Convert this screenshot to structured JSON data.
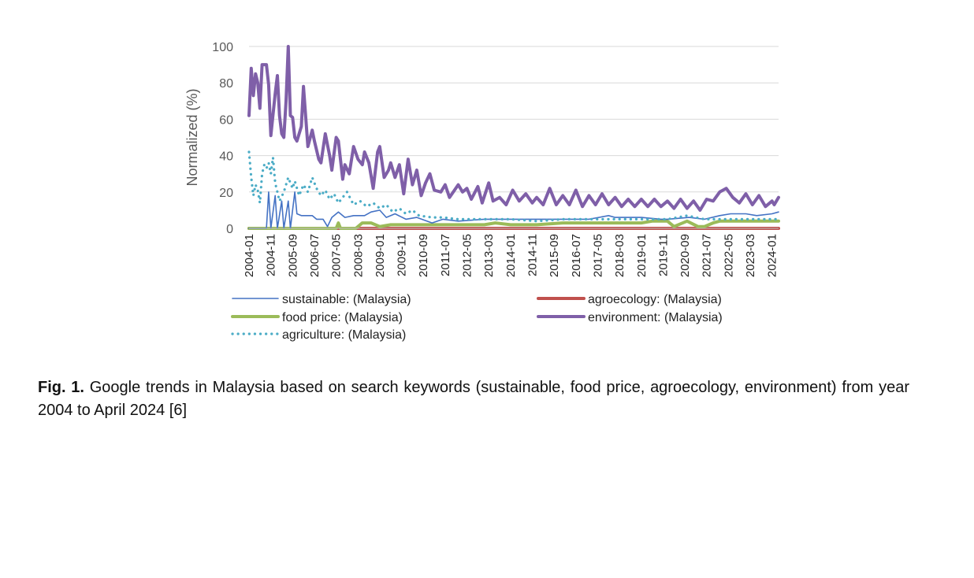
{
  "chart_data": {
    "type": "line",
    "title": "",
    "ylabel": "Normalized (%)",
    "xlabel": "",
    "ylim": [
      0,
      100
    ],
    "yticks": [
      0,
      20,
      40,
      60,
      80,
      100
    ],
    "xlim": [
      "2004-01",
      "2024-04"
    ],
    "xtick_labels": [
      "2004-01",
      "2004-11",
      "2005-09",
      "2006-07",
      "2007-05",
      "2008-03",
      "2009-01",
      "2009-11",
      "2010-09",
      "2011-07",
      "2012-05",
      "2013-03",
      "2014-01",
      "2014-11",
      "2015-09",
      "2016-07",
      "2017-05",
      "2018-03",
      "2019-01",
      "2019-11",
      "2020-09",
      "2021-07",
      "2022-05",
      "2023-03",
      "2024-01"
    ],
    "grid": "horizontal",
    "legend_position": "bottom",
    "series": [
      {
        "name": "sustainable: (Malaysia)",
        "color": "#4472c4",
        "style": "thin-solid",
        "points": [
          [
            "2004-01",
            0
          ],
          [
            "2004-09",
            0
          ],
          [
            "2004-10",
            20
          ],
          [
            "2004-11",
            0
          ],
          [
            "2005-01",
            18
          ],
          [
            "2005-02",
            0
          ],
          [
            "2005-04",
            15
          ],
          [
            "2005-05",
            0
          ],
          [
            "2005-07",
            15
          ],
          [
            "2005-08",
            0
          ],
          [
            "2005-10",
            20
          ],
          [
            "2005-11",
            8
          ],
          [
            "2006-01",
            7
          ],
          [
            "2006-06",
            7
          ],
          [
            "2006-08",
            5
          ],
          [
            "2006-11",
            5
          ],
          [
            "2007-01",
            1
          ],
          [
            "2007-03",
            6
          ],
          [
            "2007-06",
            9
          ],
          [
            "2007-09",
            6
          ],
          [
            "2008-01",
            7
          ],
          [
            "2008-06",
            7
          ],
          [
            "2008-09",
            9
          ],
          [
            "2009-01",
            10
          ],
          [
            "2009-04",
            6
          ],
          [
            "2009-08",
            8
          ],
          [
            "2010-01",
            5
          ],
          [
            "2010-06",
            6
          ],
          [
            "2011-01",
            3
          ],
          [
            "2011-06",
            5
          ],
          [
            "2012-01",
            4
          ],
          [
            "2013-01",
            5
          ],
          [
            "2014-01",
            5
          ],
          [
            "2015-01",
            5
          ],
          [
            "2016-01",
            5
          ],
          [
            "2017-01",
            5
          ],
          [
            "2017-10",
            7
          ],
          [
            "2018-01",
            6
          ],
          [
            "2019-01",
            6
          ],
          [
            "2019-10",
            5
          ],
          [
            "2020-01",
            5
          ],
          [
            "2020-11",
            6
          ],
          [
            "2021-06",
            5
          ],
          [
            "2022-01",
            7
          ],
          [
            "2022-06",
            8
          ],
          [
            "2023-01",
            8
          ],
          [
            "2023-06",
            7
          ],
          [
            "2024-01",
            8
          ],
          [
            "2024-04",
            9
          ]
        ]
      },
      {
        "name": "agroecology: (Malaysia)",
        "color": "#c0504d",
        "style": "thick-solid",
        "points": [
          [
            "2004-01",
            0
          ],
          [
            "2024-04",
            0
          ]
        ]
      },
      {
        "name": "food price: (Malaysia)",
        "color": "#9bbb59",
        "style": "thick-solid",
        "points": [
          [
            "2004-01",
            0
          ],
          [
            "2007-05",
            0
          ],
          [
            "2007-06",
            3
          ],
          [
            "2007-07",
            0
          ],
          [
            "2008-02",
            0
          ],
          [
            "2008-05",
            3
          ],
          [
            "2008-09",
            3
          ],
          [
            "2009-01",
            1
          ],
          [
            "2009-06",
            2
          ],
          [
            "2010-01",
            2
          ],
          [
            "2011-01",
            2
          ],
          [
            "2012-01",
            2
          ],
          [
            "2013-01",
            2
          ],
          [
            "2013-06",
            3
          ],
          [
            "2014-01",
            2
          ],
          [
            "2015-01",
            2
          ],
          [
            "2016-01",
            3
          ],
          [
            "2017-01",
            3
          ],
          [
            "2018-01",
            3
          ],
          [
            "2019-01",
            3
          ],
          [
            "2019-06",
            4
          ],
          [
            "2020-01",
            4
          ],
          [
            "2020-04",
            1
          ],
          [
            "2020-10",
            4
          ],
          [
            "2021-03",
            1
          ],
          [
            "2021-06",
            1
          ],
          [
            "2021-10",
            3
          ],
          [
            "2022-01",
            4
          ],
          [
            "2023-01",
            4
          ],
          [
            "2024-04",
            4
          ]
        ]
      },
      {
        "name": "environment: (Malaysia)",
        "color": "#7f5fa8",
        "style": "thick-solid",
        "points": [
          [
            "2004-01",
            62
          ],
          [
            "2004-02",
            88
          ],
          [
            "2004-03",
            73
          ],
          [
            "2004-04",
            85
          ],
          [
            "2004-05",
            80
          ],
          [
            "2004-06",
            66
          ],
          [
            "2004-07",
            90
          ],
          [
            "2004-08",
            90
          ],
          [
            "2004-09",
            90
          ],
          [
            "2004-10",
            79
          ],
          [
            "2004-11",
            51
          ],
          [
            "2005-01",
            74
          ],
          [
            "2005-02",
            84
          ],
          [
            "2005-03",
            62
          ],
          [
            "2005-04",
            52
          ],
          [
            "2005-05",
            50
          ],
          [
            "2005-06",
            70
          ],
          [
            "2005-07",
            100
          ],
          [
            "2005-08",
            62
          ],
          [
            "2005-09",
            61
          ],
          [
            "2005-10",
            50
          ],
          [
            "2005-11",
            48
          ],
          [
            "2006-01",
            56
          ],
          [
            "2006-02",
            78
          ],
          [
            "2006-04",
            45
          ],
          [
            "2006-06",
            54
          ],
          [
            "2006-07",
            48
          ],
          [
            "2006-09",
            38
          ],
          [
            "2006-10",
            36
          ],
          [
            "2006-12",
            52
          ],
          [
            "2007-02",
            40
          ],
          [
            "2007-03",
            32
          ],
          [
            "2007-05",
            50
          ],
          [
            "2007-06",
            48
          ],
          [
            "2007-08",
            27
          ],
          [
            "2007-09",
            35
          ],
          [
            "2007-11",
            30
          ],
          [
            "2008-01",
            45
          ],
          [
            "2008-03",
            38
          ],
          [
            "2008-05",
            35
          ],
          [
            "2008-06",
            42
          ],
          [
            "2008-08",
            36
          ],
          [
            "2008-10",
            22
          ],
          [
            "2008-12",
            42
          ],
          [
            "2009-01",
            45
          ],
          [
            "2009-03",
            28
          ],
          [
            "2009-05",
            32
          ],
          [
            "2009-06",
            36
          ],
          [
            "2009-08",
            28
          ],
          [
            "2009-10",
            35
          ],
          [
            "2009-12",
            19
          ],
          [
            "2010-02",
            38
          ],
          [
            "2010-04",
            24
          ],
          [
            "2010-06",
            32
          ],
          [
            "2010-08",
            18
          ],
          [
            "2010-10",
            25
          ],
          [
            "2010-12",
            30
          ],
          [
            "2011-02",
            21
          ],
          [
            "2011-05",
            20
          ],
          [
            "2011-07",
            24
          ],
          [
            "2011-09",
            17
          ],
          [
            "2012-01",
            24
          ],
          [
            "2012-03",
            20
          ],
          [
            "2012-05",
            22
          ],
          [
            "2012-07",
            16
          ],
          [
            "2012-10",
            23
          ],
          [
            "2012-12",
            14
          ],
          [
            "2013-03",
            25
          ],
          [
            "2013-05",
            15
          ],
          [
            "2013-08",
            17
          ],
          [
            "2013-11",
            13
          ],
          [
            "2014-02",
            21
          ],
          [
            "2014-05",
            15
          ],
          [
            "2014-08",
            19
          ],
          [
            "2014-11",
            14
          ],
          [
            "2015-01",
            17
          ],
          [
            "2015-04",
            13
          ],
          [
            "2015-07",
            22
          ],
          [
            "2015-10",
            13
          ],
          [
            "2016-01",
            18
          ],
          [
            "2016-04",
            13
          ],
          [
            "2016-07",
            21
          ],
          [
            "2016-10",
            12
          ],
          [
            "2017-01",
            18
          ],
          [
            "2017-04",
            13
          ],
          [
            "2017-07",
            19
          ],
          [
            "2017-10",
            13
          ],
          [
            "2018-01",
            17
          ],
          [
            "2018-04",
            12
          ],
          [
            "2018-07",
            16
          ],
          [
            "2018-10",
            12
          ],
          [
            "2019-01",
            16
          ],
          [
            "2019-04",
            12
          ],
          [
            "2019-07",
            16
          ],
          [
            "2019-10",
            12
          ],
          [
            "2020-01",
            15
          ],
          [
            "2020-04",
            11
          ],
          [
            "2020-07",
            16
          ],
          [
            "2020-10",
            11
          ],
          [
            "2021-01",
            15
          ],
          [
            "2021-04",
            10
          ],
          [
            "2021-07",
            16
          ],
          [
            "2021-10",
            15
          ],
          [
            "2022-01",
            20
          ],
          [
            "2022-04",
            22
          ],
          [
            "2022-07",
            17
          ],
          [
            "2022-10",
            14
          ],
          [
            "2023-01",
            19
          ],
          [
            "2023-04",
            13
          ],
          [
            "2023-07",
            18
          ],
          [
            "2023-10",
            12
          ],
          [
            "2024-01",
            15
          ],
          [
            "2024-02",
            13
          ],
          [
            "2024-04",
            17
          ]
        ]
      },
      {
        "name": "agriculture: (Malaysia)",
        "color": "#4bacc6",
        "style": "dotted",
        "points": [
          [
            "2004-01",
            42
          ],
          [
            "2004-02",
            28
          ],
          [
            "2004-03",
            18
          ],
          [
            "2004-04",
            24
          ],
          [
            "2004-05",
            21
          ],
          [
            "2004-06",
            14
          ],
          [
            "2004-07",
            30
          ],
          [
            "2004-08",
            35
          ],
          [
            "2004-09",
            33
          ],
          [
            "2004-10",
            36
          ],
          [
            "2004-11",
            30
          ],
          [
            "2004-12",
            39
          ],
          [
            "2005-01",
            25
          ],
          [
            "2005-02",
            20
          ],
          [
            "2005-03",
            15
          ],
          [
            "2005-05",
            20
          ],
          [
            "2005-07",
            28
          ],
          [
            "2005-08",
            25
          ],
          [
            "2005-09",
            22
          ],
          [
            "2005-10",
            26
          ],
          [
            "2005-12",
            18
          ],
          [
            "2006-02",
            24
          ],
          [
            "2006-04",
            20
          ],
          [
            "2006-06",
            28
          ],
          [
            "2006-08",
            22
          ],
          [
            "2006-10",
            18
          ],
          [
            "2006-12",
            21
          ],
          [
            "2007-02",
            16
          ],
          [
            "2007-04",
            19
          ],
          [
            "2007-06",
            14
          ],
          [
            "2007-08",
            17
          ],
          [
            "2007-10",
            20
          ],
          [
            "2008-01",
            13
          ],
          [
            "2008-04",
            15
          ],
          [
            "2008-07",
            12
          ],
          [
            "2008-10",
            14
          ],
          [
            "2009-01",
            11
          ],
          [
            "2009-04",
            13
          ],
          [
            "2009-07",
            9
          ],
          [
            "2009-10",
            11
          ],
          [
            "2010-01",
            8
          ],
          [
            "2010-04",
            10
          ],
          [
            "2010-07",
            7
          ],
          [
            "2011-01",
            6
          ],
          [
            "2011-06",
            6
          ],
          [
            "2012-01",
            5
          ],
          [
            "2013-01",
            5
          ],
          [
            "2014-01",
            5
          ],
          [
            "2015-01",
            4
          ],
          [
            "2016-01",
            5
          ],
          [
            "2017-01",
            5
          ],
          [
            "2018-01",
            5
          ],
          [
            "2019-01",
            5
          ],
          [
            "2020-01",
            5
          ],
          [
            "2020-10",
            7
          ],
          [
            "2021-06",
            5
          ],
          [
            "2022-01",
            5
          ],
          [
            "2023-01",
            5
          ],
          [
            "2024-04",
            5
          ]
        ]
      }
    ]
  },
  "caption": {
    "label": "Fig. 1.",
    "text": "Google trends in Malaysia based on search keywords (sustainable, food price, agroecology, environment) from year 2004 to April 2024 [6]"
  }
}
